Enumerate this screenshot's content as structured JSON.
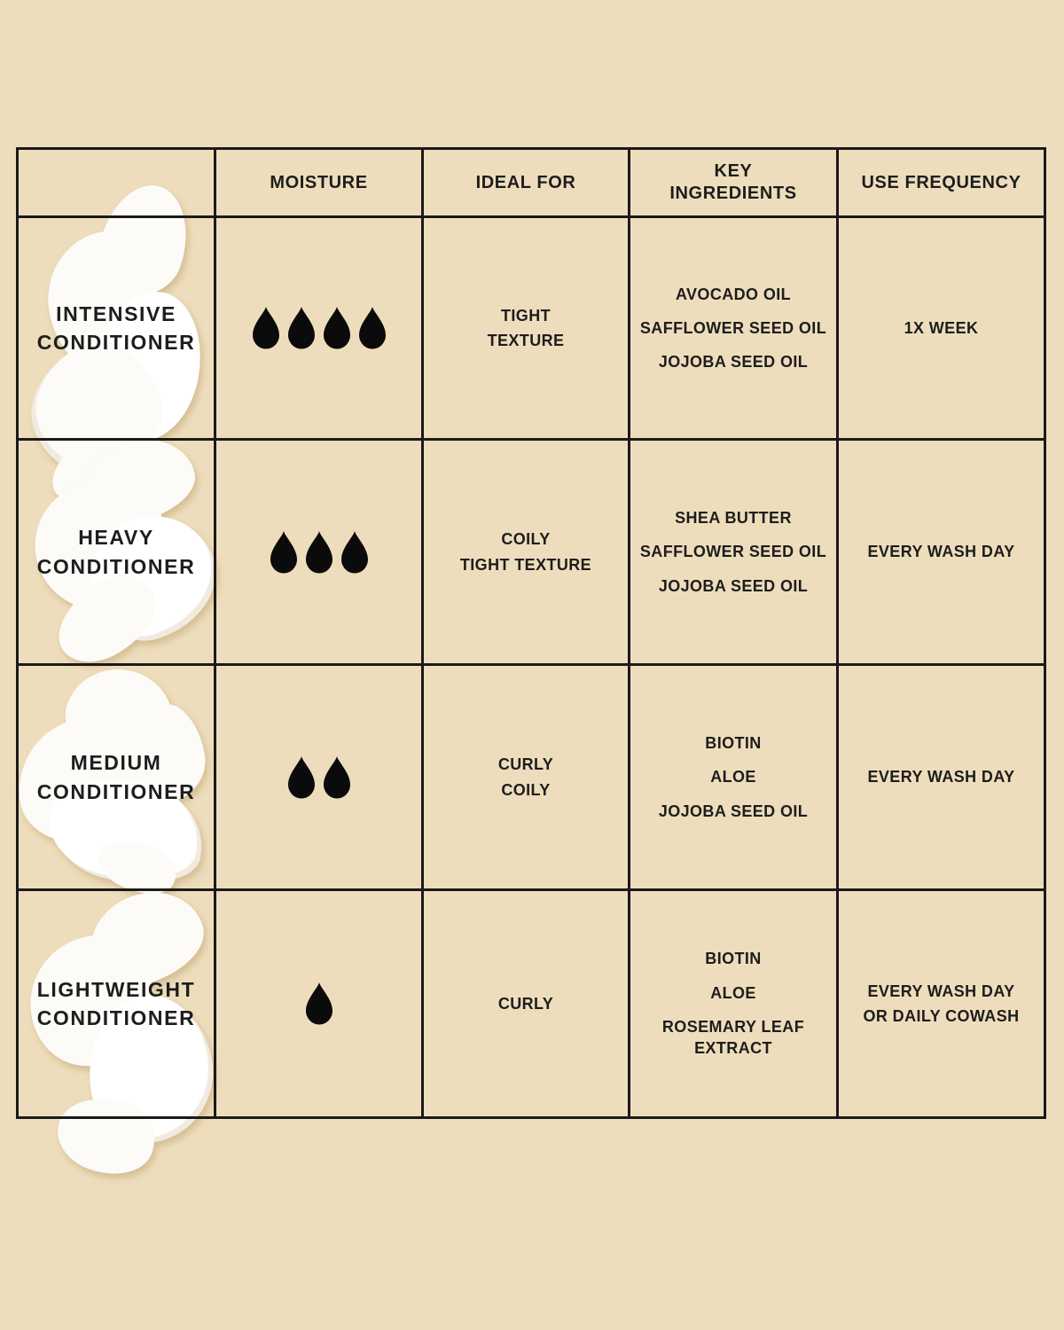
{
  "chart_data": {
    "type": "table",
    "title": "",
    "columns": [
      "",
      "MOISTURE",
      "IDEAL FOR",
      "KEY INGREDIENTS",
      "USE FREQUENCY"
    ],
    "moisture_scale_max": 4,
    "moisture_icon": "droplet-icon",
    "rows": [
      {
        "name": "INTENSIVE CONDITIONER",
        "moisture_level": 4,
        "ideal_for": [
          "TIGHT",
          "TEXTURE"
        ],
        "ingredients": [
          "AVOCADO OIL",
          "SAFFLOWER SEED OIL",
          "JOJOBA SEED OIL"
        ],
        "frequency": [
          "1X WEEK"
        ]
      },
      {
        "name": "HEAVY CONDITIONER",
        "moisture_level": 3,
        "ideal_for": [
          "COILY",
          "TIGHT TEXTURE"
        ],
        "ingredients": [
          "SHEA BUTTER",
          "SAFFLOWER SEED OIL",
          "JOJOBA SEED OIL"
        ],
        "frequency": [
          "EVERY WASH DAY"
        ]
      },
      {
        "name": "MEDIUM CONDITIONER",
        "moisture_level": 2,
        "ideal_for": [
          "CURLY",
          "COILY"
        ],
        "ingredients": [
          "BIOTIN",
          "ALOE",
          "JOJOBA SEED OIL"
        ],
        "frequency": [
          "EVERY WASH DAY"
        ]
      },
      {
        "name": "LIGHTWEIGHT CONDITIONER",
        "moisture_level": 1,
        "ideal_for": [
          "CURLY"
        ],
        "ingredients": [
          "BIOTIN",
          "ALOE",
          "ROSEMARY LEAF EXTRACT"
        ],
        "frequency": [
          "EVERY WASH DAY",
          "OR DAILY COWASH"
        ]
      }
    ],
    "colors": {
      "background": "#eeddbc",
      "grid_line": "#1a1a1a",
      "text": "#1d1d1d",
      "droplet": "#0b0b0b",
      "cream_swatch": "#fcfbf8"
    }
  }
}
